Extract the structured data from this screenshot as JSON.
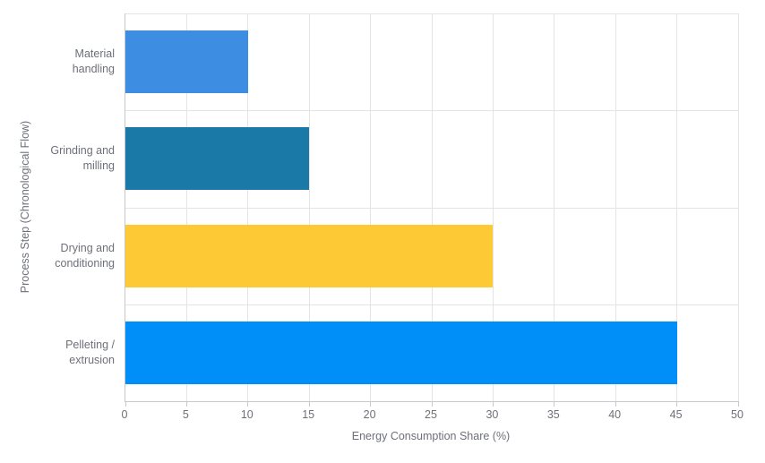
{
  "chart_data": {
    "type": "bar",
    "orientation": "horizontal",
    "title": "",
    "xlabel": "Energy Consumption Share (%)",
    "ylabel": "Process Step (Chronological Flow)",
    "categories": [
      "Material\nhandling",
      "Grinding and\nmilling",
      "Drying and\nconditioning",
      "Pelleting /\nextrusion"
    ],
    "values": [
      10,
      15,
      30,
      45
    ],
    "bar_colors": [
      "#3D8EE3",
      "#1B79A8",
      "#FDCA35",
      "#008FF8"
    ],
    "xlim": [
      0,
      50
    ],
    "xticks": [
      0,
      5,
      10,
      15,
      20,
      25,
      30,
      35,
      40,
      45,
      50
    ],
    "grid": true,
    "legend": "none",
    "gridline_color": "#e4e4e4",
    "axis_line_color": "#c9c9c9",
    "text_color": "#6e7079",
    "background_color": "#ffffff"
  }
}
